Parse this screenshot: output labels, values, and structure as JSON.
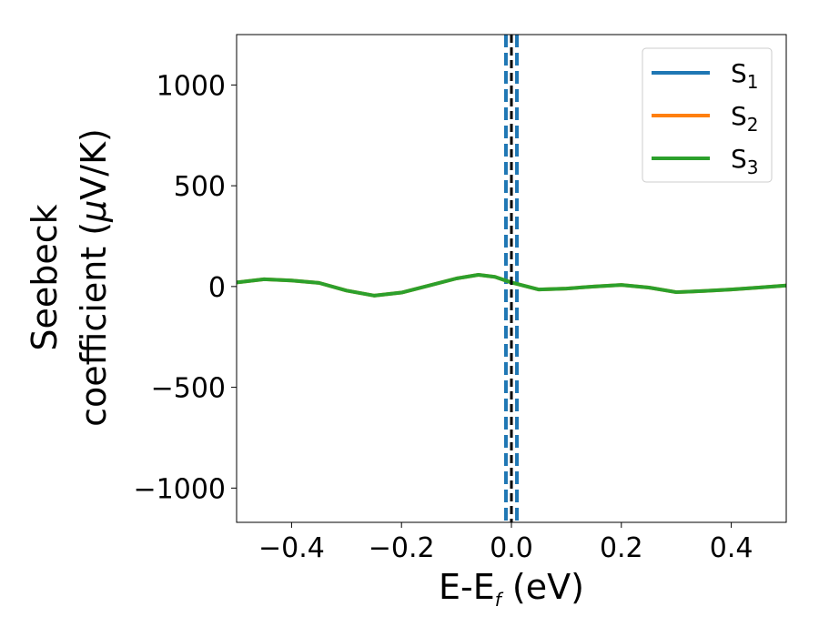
{
  "chart_data": {
    "type": "line",
    "xlabel": "E-E",
    "xlabel_sub": "f",
    "xlabel_unit": " (eV)",
    "ylabel_line1": "Seebeck",
    "ylabel_line2_pre": "coefficient  (",
    "ylabel_mu": "μ",
    "ylabel_line2_post": "V/K)",
    "xlim": [
      -0.5,
      0.5
    ],
    "ylim": [
      -1170,
      1250
    ],
    "xticks": [
      -0.4,
      -0.2,
      0.0,
      0.2,
      0.4
    ],
    "xtick_labels": [
      "−0.4",
      "−0.2",
      "0.0",
      "0.2",
      "0.4"
    ],
    "yticks": [
      -1000,
      -500,
      0,
      500,
      1000
    ],
    "ytick_labels": [
      "−1000",
      "−500",
      "0",
      "500",
      "1000"
    ],
    "grid": false,
    "legend_position": "top-right",
    "fermi_level_x": 0.0,
    "series": [
      {
        "name": "S",
        "sub": "1",
        "color": "#1f77b4",
        "style": "dashed-vertical",
        "x": [
          -0.01,
          -0.01,
          0.01,
          0.01
        ],
        "y": [
          -1170,
          1250,
          1250,
          -1170
        ]
      },
      {
        "name": "S",
        "sub": "2",
        "color": "#ff7f0e",
        "style": "solid",
        "x": [
          -0.5,
          -0.45,
          -0.4,
          -0.35,
          -0.3,
          -0.25,
          -0.2,
          -0.15,
          -0.1,
          -0.06,
          -0.03,
          0.0,
          0.05,
          0.1,
          0.15,
          0.2,
          0.25,
          0.3,
          0.35,
          0.4,
          0.45,
          0.5
        ],
        "y": [
          20,
          36,
          30,
          18,
          -20,
          -45,
          -30,
          5,
          40,
          58,
          48,
          20,
          -15,
          -10,
          0,
          8,
          -5,
          -28,
          -22,
          -15,
          -5,
          5
        ]
      },
      {
        "name": "S",
        "sub": "3",
        "color": "#2ca02c",
        "style": "solid",
        "x": [
          -0.5,
          -0.45,
          -0.4,
          -0.35,
          -0.3,
          -0.25,
          -0.2,
          -0.15,
          -0.1,
          -0.06,
          -0.03,
          0.0,
          0.05,
          0.1,
          0.15,
          0.2,
          0.25,
          0.3,
          0.35,
          0.4,
          0.45,
          0.5
        ],
        "y": [
          20,
          36,
          30,
          18,
          -20,
          -45,
          -30,
          5,
          40,
          58,
          48,
          20,
          -15,
          -10,
          0,
          8,
          -5,
          -28,
          -22,
          -15,
          -5,
          5
        ]
      }
    ]
  }
}
